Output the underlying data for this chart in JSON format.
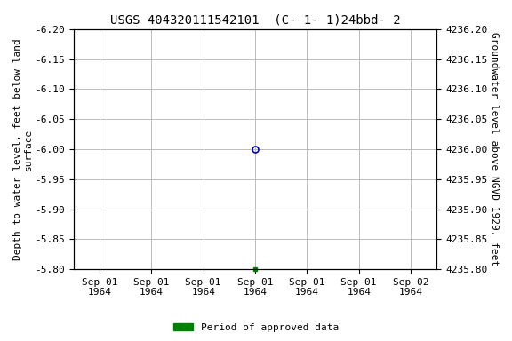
{
  "title": "USGS 404320111542101  (C- 1- 1)24bbd- 2",
  "ylabel_left": "Depth to water level, feet below land\nsurface",
  "ylabel_right": "Groundwater level above NGVD 1929, feet",
  "ylim_left": [
    -6.2,
    -5.8
  ],
  "ylim_right": [
    4235.8,
    4236.2
  ],
  "yticks_left": [
    -6.2,
    -6.15,
    -6.1,
    -6.05,
    -6.0,
    -5.95,
    -5.9,
    -5.85,
    -5.8
  ],
  "yticks_right": [
    4235.8,
    4235.85,
    4235.9,
    4235.95,
    4236.0,
    4236.05,
    4236.1,
    4236.15,
    4236.2
  ],
  "xtick_labels": [
    "Sep 01\n1964",
    "Sep 01\n1964",
    "Sep 01\n1964",
    "Sep 01\n1964",
    "Sep 01\n1964",
    "Sep 01\n1964",
    "Sep 02\n1964"
  ],
  "xtick_positions": [
    0,
    1,
    2,
    3,
    4,
    5,
    6
  ],
  "xlim": [
    -0.5,
    6.5
  ],
  "data_point_x": 3,
  "data_point_y": -6.0,
  "data_point_color": "#0000cc",
  "green_marker_x": 3,
  "green_marker_y": -5.8,
  "green_color": "#008000",
  "legend_label": "Period of approved data",
  "bg_color": "#ffffff",
  "plot_bg_color": "#ffffff",
  "grid_color": "#bbbbbb",
  "title_fontsize": 10,
  "axis_label_fontsize": 8,
  "tick_fontsize": 8
}
